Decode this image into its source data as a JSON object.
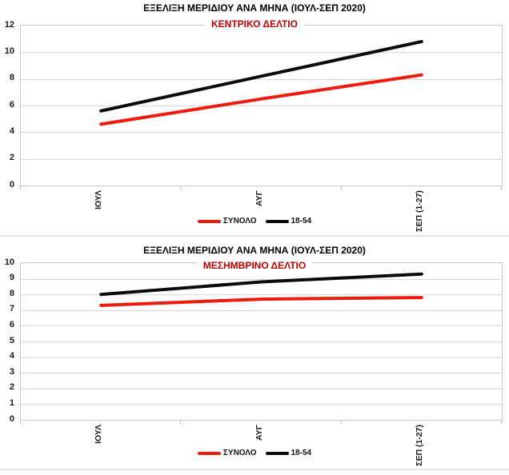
{
  "chart_data": [
    {
      "type": "line",
      "title": "ΕΞΕΛΙΞΗ ΜΕΡΙΔΙΟΥ ΑΝΑ ΜΗΝΑ (ΙΟΥΛ-ΣΕΠ 2020)",
      "subtitle": "ΚΕΝΤΡΙΚΟ ΔΕΛΤΙΟ",
      "subtitle_color": "#C00000",
      "categories": [
        "ΙΟΥΛ",
        "ΑΥΓ",
        "ΣΕΠ (1-27)"
      ],
      "series": [
        {
          "name": "ΣΥΝΟΛΟ",
          "color": "#EE1B0C",
          "values": [
            4.6,
            6.5,
            8.3
          ]
        },
        {
          "name": "18-54",
          "color": "#0B0B0B",
          "values": [
            5.6,
            8.2,
            10.8
          ]
        }
      ],
      "ylim": [
        0,
        12
      ],
      "ytick": 2,
      "grid": true,
      "legend_position": "bottom",
      "x_labels_rotated_degrees": 90
    },
    {
      "type": "line",
      "title": "ΕΞΕΛΙΞΗ ΜΕΡΙΔΙΟΥ ΑΝΑ ΜΗΝΑ (ΙΟΥΛ-ΣΕΠ 2020)",
      "subtitle": "ΜΕΣΗΜΒΡΙΝΟ ΔΕΛΤΙΟ",
      "subtitle_color": "#C00000",
      "categories": [
        "ΙΟΥΛ",
        "ΑΥΓ",
        "ΣΕΠ (1-27)"
      ],
      "series": [
        {
          "name": "ΣΥΝΟΛΟ",
          "color": "#EE1B0C",
          "values": [
            7.3,
            7.7,
            7.8
          ]
        },
        {
          "name": "18-54",
          "color": "#0B0B0B",
          "values": [
            8.0,
            8.8,
            9.3
          ]
        }
      ],
      "ylim": [
        0,
        10
      ],
      "ytick": 1,
      "grid": true,
      "legend_position": "bottom",
      "x_labels_rotated_degrees": 90
    }
  ],
  "theme": {
    "grid_color": "#D9D9D9",
    "axis_color": "#C9C9C9",
    "tick_color": "#B9B9B9",
    "text_color": "#1A1A1A",
    "background": "#FFFFFF"
  }
}
